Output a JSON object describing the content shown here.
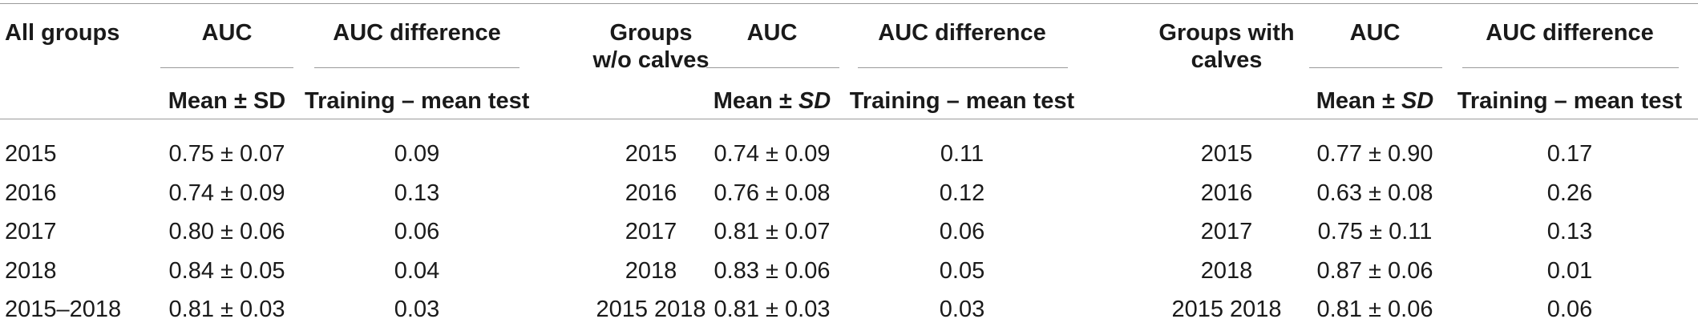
{
  "table": {
    "sections": [
      {
        "group_label_lines": [
          "All groups"
        ],
        "auc_label": "AUC",
        "auc_sub_parts": [
          "Mean ± ",
          "SD",
          ""
        ],
        "diff_label": "AUC difference",
        "diff_sub": "Training – mean test",
        "years": [
          "2015",
          "2016",
          "2017",
          "2018",
          "2015–2018"
        ],
        "auc": [
          "0.75 ± 0.07",
          "0.74 ± 0.09",
          "0.80 ± 0.06",
          "0.84 ± 0.05",
          "0.81 ± 0.03"
        ],
        "diff": [
          "0.09",
          "0.13",
          "0.06",
          "0.04",
          "0.03"
        ]
      },
      {
        "group_label_lines": [
          "Groups",
          "w/o calves"
        ],
        "auc_label": "AUC",
        "auc_sub_parts": [
          "Mean ± ",
          "SD",
          ""
        ],
        "diff_label": "AUC difference",
        "diff_sub": "Training – mean test",
        "years": [
          "2015",
          "2016",
          "2017",
          "2018",
          "2015 2018"
        ],
        "auc": [
          "0.74 ± 0.09",
          "0.76 ± 0.08",
          "0.81 ± 0.07",
          "0.83 ± 0.06",
          "0.81 ± 0.03"
        ],
        "diff": [
          "0.11",
          "0.12",
          "0.06",
          "0.05",
          "0.03"
        ]
      },
      {
        "group_label_lines": [
          "Groups with",
          "calves"
        ],
        "auc_label": "AUC",
        "auc_sub_parts": [
          "Mean ± ",
          "SD",
          ""
        ],
        "diff_label": "AUC difference",
        "diff_sub": "Training – mean test",
        "years": [
          "2015",
          "2016",
          "2017",
          "2018",
          "2015 2018"
        ],
        "auc": [
          "0.77 ± 0.90",
          "0.63 ± 0.08",
          "0.75 ± 0.11",
          "0.87 ± 0.06",
          "0.81 ± 0.06"
        ],
        "diff": [
          "0.17",
          "0.26",
          "0.13",
          "0.01",
          "0.06"
        ]
      }
    ]
  }
}
